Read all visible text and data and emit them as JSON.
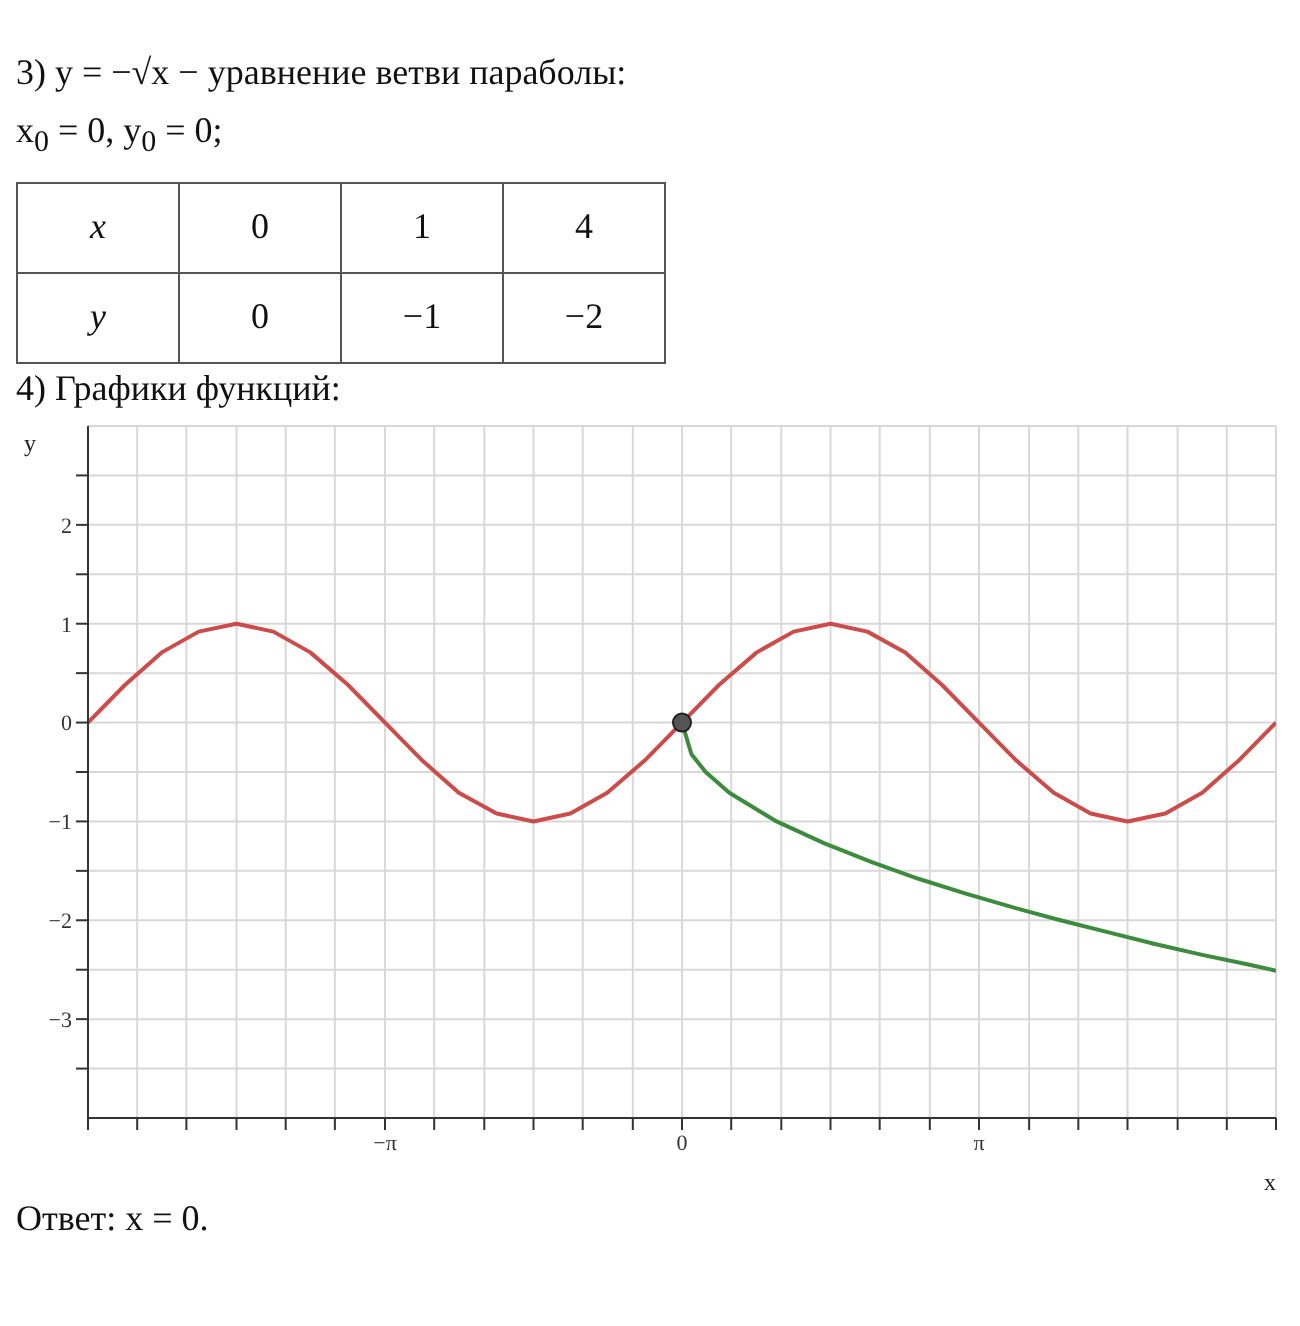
{
  "chart_data": {
    "type": "line",
    "title": "4) Графики функций:",
    "xlabel": "x",
    "ylabel": "y",
    "annotations": [
      "3) y = −√x − уравнение ветви параболы:",
      "x$_{0}$ = 0,  y$_{0}$ = 0;",
      "x 0 1 4",
      "y 0 −1 −2",
      "Ответ: x = 0."
    ],
    "xlim": [
      -6.28,
      6.28
    ],
    "ylim": [
      -4,
      3
    ],
    "xticks": [
      {
        "value": -6.28,
        "label": null
      },
      {
        "value": -5.76,
        "label": null
      },
      {
        "value": -5.24,
        "label": null
      },
      {
        "value": -4.71,
        "label": null
      },
      {
        "value": -4.19,
        "label": null
      },
      {
        "value": -3.67,
        "label": null
      },
      {
        "value": -3.14,
        "label": "−π"
      },
      {
        "value": -2.62,
        "label": null
      },
      {
        "value": -2.09,
        "label": null
      },
      {
        "value": -1.57,
        "label": null
      },
      {
        "value": -1.05,
        "label": null
      },
      {
        "value": -0.52,
        "label": null
      },
      0,
      {
        "value": 0.52,
        "label": null
      },
      {
        "value": 1.05,
        "label": null
      },
      {
        "value": 1.57,
        "label": null
      },
      {
        "value": 2.09,
        "label": null
      },
      {
        "value": 2.62,
        "label": null
      },
      {
        "value": 3.14,
        "label": "π"
      },
      {
        "value": 3.67,
        "label": null
      },
      {
        "value": 4.19,
        "label": null
      },
      {
        "value": 4.71,
        "label": null
      },
      {
        "value": 5.24,
        "label": null
      },
      {
        "value": 5.76,
        "label": null
      },
      {
        "value": 6.28,
        "label": null
      }
    ],
    "yticks": [
      {
        "value": -3.5,
        "label": null
      },
      {
        "value": -3,
        "label": "−3"
      },
      {
        "value": -2.5,
        "label": null
      },
      {
        "value": -2,
        "label": "−2"
      },
      {
        "value": -1.5,
        "label": null
      },
      {
        "value": -1,
        "label": "−1"
      },
      {
        "value": -0.5,
        "label": null
      },
      0,
      {
        "value": 0.5,
        "label": null
      },
      1,
      {
        "value": 1.5,
        "label": null
      },
      2,
      {
        "value": 2.5,
        "label": null
      }
    ],
    "grid": true,
    "marker": "none",
    "line_style": "solid",
    "series": [
      {
        "color": "#cc4b4b",
        "x": [
          -6.28,
          -5.89,
          -5.5,
          -5.11,
          -4.71,
          -4.32,
          -3.93,
          -3.53,
          -3.14,
          -2.75,
          -2.36,
          -1.96,
          -1.57,
          -1.18,
          -0.79,
          -0.39,
          0,
          0.39,
          0.79,
          1.18,
          1.57,
          1.96,
          2.36,
          2.75,
          3.14,
          3.53,
          3.93,
          4.32,
          4.71,
          5.11,
          5.5,
          5.89,
          6.28
        ],
        "values": [
          0,
          0.38,
          0.71,
          0.92,
          1,
          0.92,
          0.71,
          0.38,
          0,
          -0.38,
          -0.71,
          -0.92,
          -1,
          -0.92,
          -0.71,
          -0.38,
          0,
          0.38,
          0.71,
          0.92,
          1,
          0.92,
          0.71,
          0.38,
          0,
          -0.38,
          -0.71,
          -0.92,
          -1,
          -0.92,
          -0.71,
          -0.38,
          0
        ]
      },
      {
        "color": "#3d8b3d",
        "x": [
          0,
          0.1,
          0.25,
          0.5,
          1,
          1.5,
          2,
          2.5,
          3,
          3.5,
          4,
          4.5,
          5,
          5.5,
          6,
          6.28
        ],
        "values": [
          0,
          -0.32,
          -0.5,
          -0.71,
          -1,
          -1.22,
          -1.41,
          -1.58,
          -1.73,
          -1.87,
          -2,
          -2.12,
          -2.24,
          -2.35,
          -2.45,
          -2.51
        ]
      },
      {
        "type": "scatter",
        "marker": "circle",
        "color": "#555555",
        "x": [
          0
        ],
        "values": [
          0
        ]
      }
    ]
  }
}
